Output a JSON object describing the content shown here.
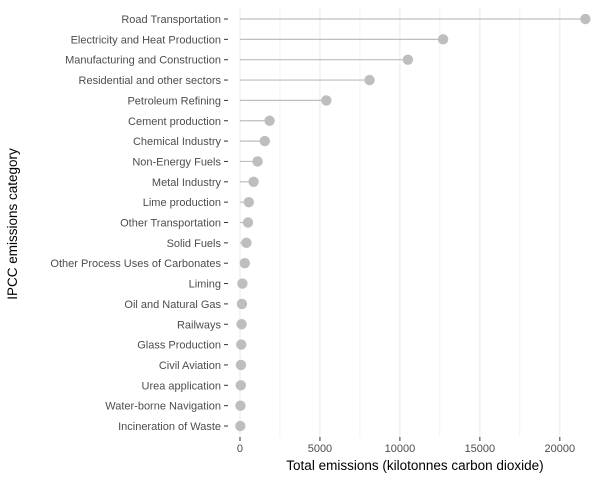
{
  "chart_data": {
    "type": "lollipop",
    "xlabel": "Total emissions (kilotonnes carbon dioxide)",
    "ylabel": "IPCC emissions category",
    "xlim": [
      -750,
      22700
    ],
    "x_ticks": [
      0,
      5000,
      10000,
      15000,
      20000
    ],
    "grid": "vertical major and minor lines",
    "categories": [
      "Road Transportation",
      "Electricity and Heat Production",
      "Manufacturing and Construction",
      "Residential and other sectors",
      "Petroleum Refining",
      "Cement production",
      "Chemical Industry",
      "Non-Energy Fuels",
      "Metal Industry",
      "Lime production",
      "Other Transportation",
      "Solid Fuels",
      "Other Process Uses of Carbonates",
      "Liming",
      "Oil and Natural Gas",
      "Railways",
      "Glass Production",
      "Civil Aviation",
      "Urea application",
      "Water-borne Navigation",
      "Incineration of Waste"
    ],
    "values": [
      21600,
      12700,
      10500,
      8100,
      5400,
      1850,
      1550,
      1100,
      850,
      550,
      500,
      400,
      300,
      150,
      120,
      100,
      80,
      60,
      50,
      30,
      20
    ],
    "colors": {
      "point": "#bebebe",
      "stem": "#bebebe",
      "grid": "#ebebeb",
      "axis_text": "#4d4d4d",
      "title": "#000000"
    }
  }
}
